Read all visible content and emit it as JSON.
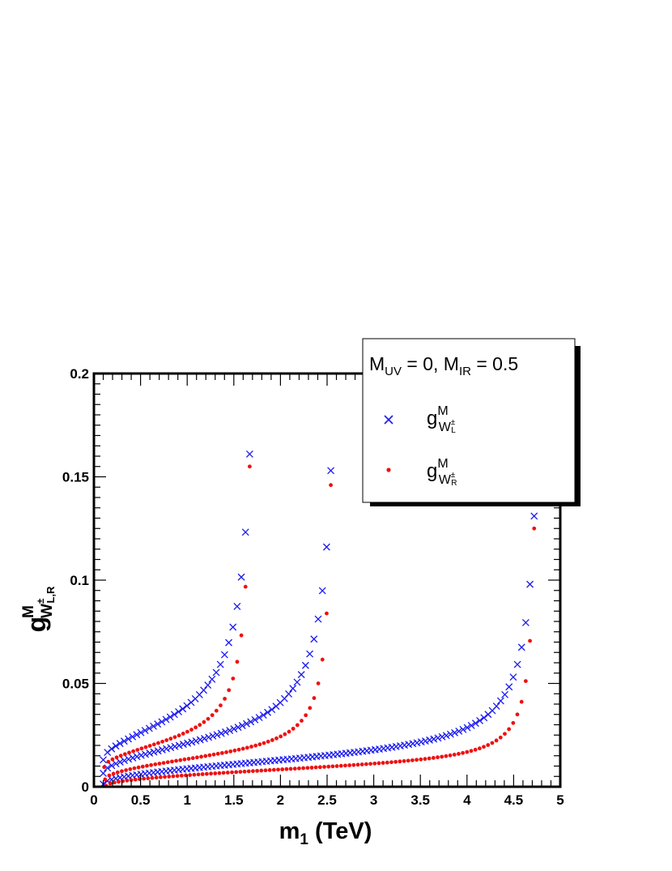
{
  "chart_data": {
    "type": "scatter",
    "title": "",
    "xlabel": {
      "main": "m",
      "sub": "1",
      "unit": " (TeV)"
    },
    "ylabel": {
      "main": "g",
      "sup": "M",
      "sub": "W",
      "subsup": "±",
      "subsub": "L,R"
    },
    "xlim": [
      0,
      5
    ],
    "ylim": [
      0,
      0.2
    ],
    "x_ticks": [
      "0",
      "0.5",
      "1",
      "1.5",
      "2",
      "2.5",
      "3",
      "3.5",
      "4",
      "4.5",
      "5"
    ],
    "y_ticks": [
      "0",
      "0.05",
      "0.1",
      "0.15",
      "0.2"
    ],
    "legend": {
      "placement": "top-right",
      "header": {
        "a": "M",
        "a_sub": "UV",
        "b": " = 0, M",
        "b_sub": "IR",
        "c": " = 0.5"
      },
      "entries": [
        {
          "marker": "x",
          "color": "#1a1aee",
          "main": "g",
          "sup": "M",
          "sub": "W",
          "subsup": "±",
          "subsub": "L"
        },
        {
          "marker": "dot",
          "color": "#ee1111",
          "main": "g",
          "sup": "M",
          "sub": "W",
          "subsup": "±",
          "subsub": "R"
        }
      ]
    },
    "series": [
      {
        "marker": "x",
        "color": "#1a1aee",
        "curves": [
          {
            "xmin": 0.1,
            "xmax": 1.67,
            "y0": 0.013,
            "y1": 0.033,
            "yend": 0.161,
            "tc": 1.79,
            "k": 0.0091
          },
          {
            "xmin": 0.1,
            "xmax": 2.54,
            "y0": 0.0065,
            "y1": 0.0248,
            "yend": 0.153,
            "tc": 2.66,
            "k": 0.0073
          },
          {
            "xmin": 0.1,
            "xmax": 4.72,
            "y0": 0.0013,
            "y1": 0.0165,
            "yend": 0.131,
            "tc": 4.835,
            "k": 0.0067
          }
        ]
      },
      {
        "marker": "dot",
        "color": "#ee1111",
        "curves": [
          {
            "xmin": 0.11,
            "xmax": 1.67,
            "y0": 0.0095,
            "y1": 0.024,
            "yend": 0.155,
            "tc": 1.73,
            "k": 0.0058
          },
          {
            "xmin": 0.12,
            "xmax": 2.54,
            "y0": 0.0035,
            "y1": 0.0175,
            "yend": 0.146,
            "tc": 2.59,
            "k": 0.0042
          },
          {
            "xmin": 0.13,
            "xmax": 4.72,
            "y0": 0.0005,
            "y1": 0.0115,
            "yend": 0.125,
            "tc": 4.77,
            "k": 0.0035
          }
        ]
      }
    ]
  }
}
